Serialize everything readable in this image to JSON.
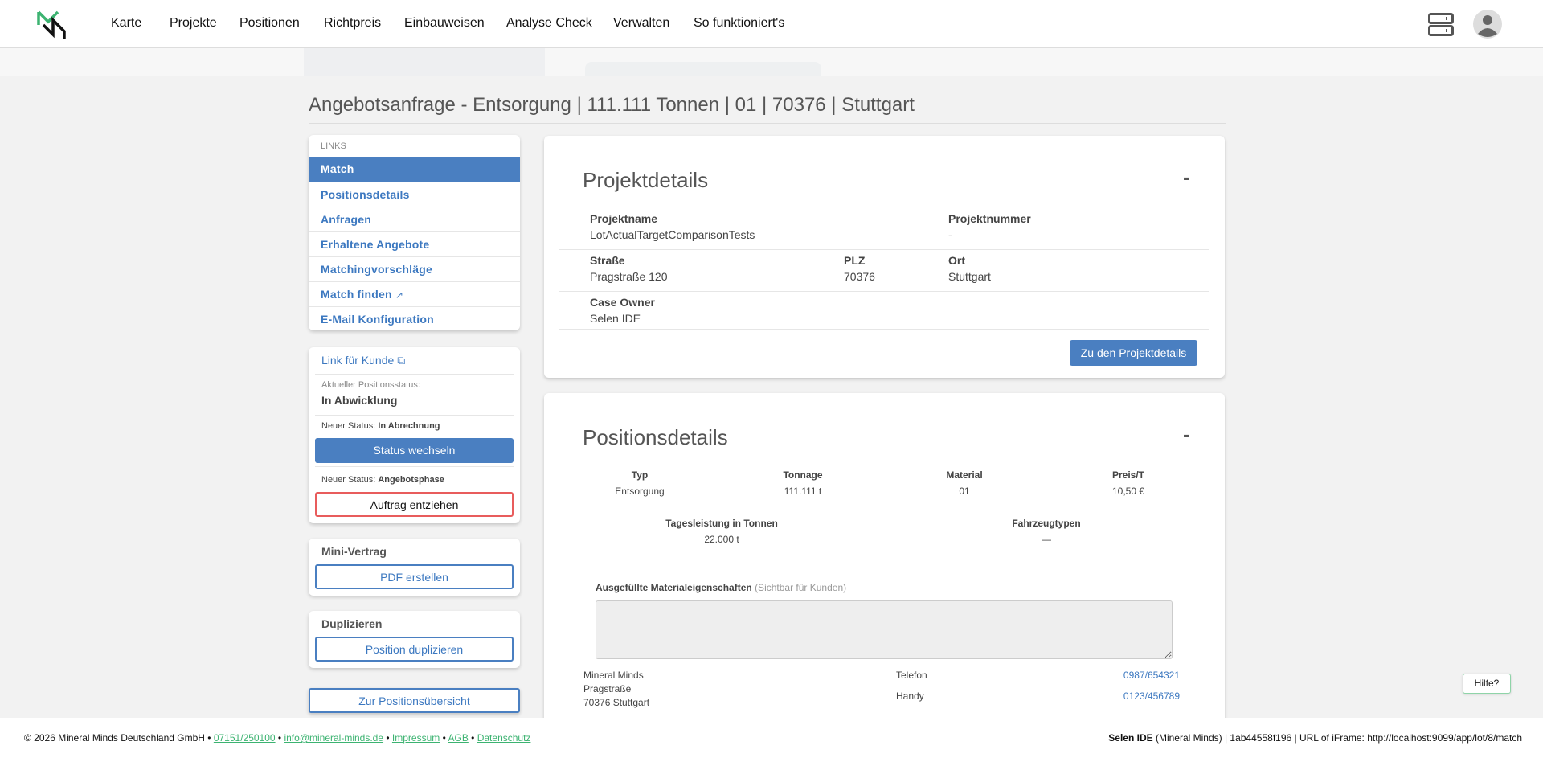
{
  "header": {
    "nav": [
      "Karte",
      "Projekte",
      "Positionen",
      "Richtpreis",
      "Einbauweisen",
      "Analyse Check",
      "Verwalten",
      "So funktioniert's"
    ],
    "icons": [
      "logo",
      "server-icon",
      "avatar-icon"
    ]
  },
  "page_title": "Angebotsanfrage - Entsorgung | 111.111 Tonnen | 01 | 70376 | Stuttgart",
  "sidebar": {
    "links_heading": "LINKS",
    "links": [
      "Match",
      "Positionsdetails",
      "Anfragen",
      "Erhaltene Angebote",
      "Matchingvorschläge",
      "Match finden",
      "E-Mail Konfiguration"
    ],
    "active": "Match",
    "customer_link": "Link für Kunde",
    "current_status_label": "Aktueller Positionsstatus:",
    "current_status": "In Abwicklung",
    "new_status_label": "Neuer Status:",
    "new_status_1": "In Abrechnung",
    "change_status_button": "Status wechseln",
    "new_status_2": "Angebotsphase",
    "withdraw_button": "Auftrag entziehen",
    "mini_contract_title": "Mini-Vertrag",
    "pdf_button": "PDF erstellen",
    "duplicate_title": "Duplizieren",
    "duplicate_button": "Position duplizieren",
    "overview_button": "Zur Positionsübersicht"
  },
  "project": {
    "title": "Projektdetails",
    "collapse": "-",
    "name_label": "Projektname",
    "name": "LotActualTargetComparisonTests",
    "number_label": "Projektnummer",
    "number": "-",
    "street_label": "Straße",
    "street": "Pragstraße 120",
    "zip_label": "PLZ",
    "zip": "70376",
    "city_label": "Ort",
    "city": "Stuttgart",
    "owner_label": "Case Owner",
    "owner": "Selen IDE",
    "button": "Zu den Projektdetails"
  },
  "position": {
    "title": "Positionsdetails",
    "collapse": "-",
    "typ_label": "Typ",
    "typ": "Entsorgung",
    "tonnage_label": "Tonnage",
    "tonnage": "111.111 t",
    "material_label": "Material",
    "material": "01",
    "price_label": "Preis/T",
    "price": "10,50 €",
    "daily_label": "Tagesleistung in Tonnen",
    "daily": "22.000 t",
    "vehicle_label": "Fahrzeugtypen",
    "vehicle": "—",
    "props_label": "Ausgefüllte Materialeigenschaften",
    "props_hint": "(Sichtbar für Kunden)",
    "props_value": "",
    "company": "Mineral Minds",
    "company_street": "Pragstraße",
    "company_city": "70376 Stuttgart",
    "phone_label": "Telefon",
    "phone": "0987/654321",
    "mobile_label": "Handy",
    "mobile": "0123/456789"
  },
  "footer": {
    "copyright": "© 2026 Mineral Minds Deutschland GmbH •",
    "phone": "07151/250100",
    "email": "info@mineral-minds.de",
    "impressum": "Impressum",
    "agb": "AGB",
    "datenschutz": "Datenschutz",
    "sep": "•",
    "user": "Selen IDE",
    "user_rest": "(Mineral Minds) | 1ab44558f196 | URL of iFrame: http://localhost:9099/app/lot/8/match"
  },
  "help": "Hilfe?",
  "colors": {
    "primary": "#4a7fc1",
    "danger": "#e85c5c",
    "brand_green": "#3cb371"
  }
}
